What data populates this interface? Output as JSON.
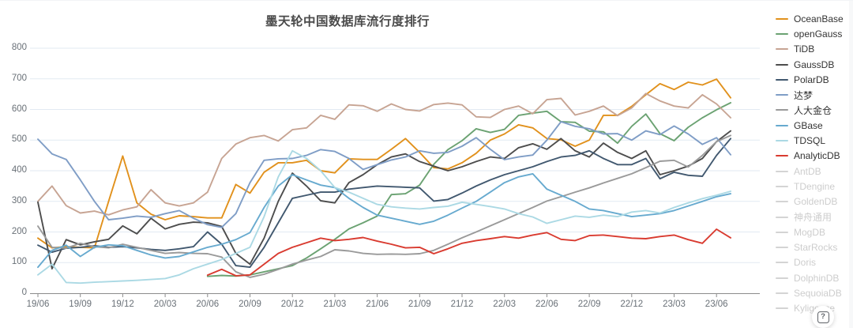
{
  "help_badge": {
    "label": "?"
  },
  "chart_data": {
    "type": "line",
    "title": "墨天轮中国数据库流行度排行",
    "xlabel": "",
    "ylabel": "",
    "ylim": [
      0,
      800
    ],
    "y_ticks": [
      0,
      100,
      200,
      300,
      400,
      500,
      600,
      700,
      800
    ],
    "grid": true,
    "legend_position": "right",
    "x_months_start": "19/06",
    "x_tick_labels": [
      "19/06",
      "19/09",
      "19/12",
      "20/03",
      "20/06",
      "20/09",
      "20/12",
      "21/03",
      "21/06",
      "21/09",
      "21/12",
      "22/03",
      "22/06",
      "22/09",
      "22/12",
      "23/03",
      "23/06"
    ],
    "x_tick_month_indexes": [
      0,
      3,
      6,
      9,
      12,
      15,
      18,
      21,
      24,
      27,
      30,
      33,
      36,
      39,
      42,
      45,
      48
    ],
    "colors": {
      "grid": "#e2eaf2",
      "axis": "#8c8c8c",
      "tick_text": "#697077",
      "title_text": "#4a4a4a",
      "inactive_legend": "#d4d4d4"
    },
    "series": [
      {
        "name": "OceanBase",
        "color": "#e1911c",
        "active": true,
        "values": [
          180,
          148,
          152,
          150,
          148,
          300,
          448,
          295,
          258,
          240,
          253,
          250,
          246,
          246,
          355,
          327,
          395,
          426,
          426,
          434,
          400,
          393,
          439,
          437,
          437,
          470,
          505,
          460,
          410,
          406,
          426,
          457,
          500,
          520,
          550,
          540,
          505,
          501,
          480,
          500,
          581,
          581,
          610,
          648,
          684,
          665,
          689,
          680,
          699,
          638
        ]
      },
      {
        "name": "openGauss",
        "color": "#6ba272",
        "active": true,
        "values": [
          null,
          null,
          null,
          null,
          null,
          null,
          null,
          null,
          null,
          null,
          null,
          null,
          55,
          58,
          56,
          60,
          70,
          80,
          90,
          115,
          145,
          176,
          210,
          230,
          252,
          322,
          325,
          353,
          421,
          469,
          498,
          537,
          525,
          535,
          581,
          588,
          594,
          560,
          558,
          529,
          527,
          490,
          545,
          585,
          521,
          498,
          542,
          573,
          599,
          622
        ]
      },
      {
        "name": "TiDB",
        "color": "#c7a493",
        "active": true,
        "values": [
          300,
          350,
          286,
          262,
          268,
          256,
          272,
          282,
          338,
          295,
          285,
          295,
          330,
          440,
          487,
          508,
          515,
          497,
          534,
          540,
          581,
          568,
          615,
          612,
          594,
          618,
          600,
          595,
          616,
          621,
          615,
          576,
          574,
          600,
          611,
          586,
          632,
          636,
          582,
          594,
          611,
          580,
          605,
          652,
          628,
          611,
          605,
          648,
          618,
          573
        ]
      },
      {
        "name": "GaussDB",
        "color": "#4d4d4d",
        "active": true,
        "values": [
          297,
          80,
          175,
          158,
          168,
          176,
          220,
          194,
          245,
          210,
          225,
          232,
          230,
          218,
          130,
          95,
          180,
          300,
          392,
          350,
          302,
          295,
          361,
          387,
          420,
          445,
          455,
          430,
          415,
          400,
          413,
          430,
          445,
          440,
          475,
          488,
          470,
          505,
          465,
          445,
          490,
          460,
          440,
          465,
          387,
          400,
          415,
          440,
          495,
          530
        ]
      },
      {
        "name": "PolarDB",
        "color": "#41586f",
        "active": true,
        "values": [
          157,
          134,
          147,
          150,
          155,
          150,
          152,
          148,
          143,
          140,
          145,
          152,
          200,
          160,
          90,
          85,
          150,
          230,
          310,
          320,
          330,
          330,
          340,
          345,
          350,
          348,
          346,
          344,
          301,
          306,
          327,
          350,
          370,
          387,
          400,
          413,
          430,
          445,
          450,
          465,
          440,
          420,
          420,
          440,
          374,
          395,
          385,
          382,
          450,
          505
        ]
      },
      {
        "name": "达梦",
        "color": "#7f9dc6",
        "active": true,
        "values": [
          503,
          455,
          437,
          370,
          300,
          240,
          245,
          252,
          248,
          260,
          270,
          245,
          224,
          215,
          260,
          361,
          434,
          439,
          440,
          450,
          469,
          463,
          440,
          404,
          420,
          435,
          445,
          465,
          457,
          460,
          480,
          508,
          470,
          436,
          445,
          451,
          500,
          560,
          545,
          537,
          520,
          521,
          500,
          530,
          518,
          546,
          520,
          486,
          508,
          452
        ]
      },
      {
        "name": "人大金仓",
        "color": "#9a9a9a",
        "active": true,
        "values": [
          219,
          150,
          147,
          163,
          152,
          148,
          160,
          150,
          140,
          130,
          133,
          130,
          129,
          118,
          70,
          52,
          62,
          78,
          95,
          108,
          120,
          142,
          138,
          130,
          127,
          128,
          127,
          129,
          140,
          160,
          181,
          200,
          220,
          240,
          260,
          280,
          301,
          315,
          330,
          344,
          360,
          375,
          390,
          410,
          431,
          434,
          412,
          450,
          495,
          515
        ]
      },
      {
        "name": "GBase",
        "color": "#67aacf",
        "active": true,
        "values": [
          85,
          140,
          157,
          120,
          150,
          158,
          155,
          140,
          125,
          115,
          120,
          135,
          150,
          160,
          175,
          198,
          280,
          350,
          387,
          370,
          353,
          345,
          310,
          280,
          255,
          245,
          235,
          225,
          235,
          255,
          278,
          300,
          330,
          361,
          380,
          390,
          340,
          320,
          300,
          275,
          270,
          260,
          250,
          255,
          260,
          270,
          285,
          300,
          315,
          325
        ]
      },
      {
        "name": "TDSQL",
        "color": "#abd9e4",
        "active": true,
        "values": [
          60,
          95,
          35,
          33,
          36,
          38,
          40,
          42,
          45,
          48,
          60,
          80,
          95,
          110,
          130,
          150,
          250,
          380,
          465,
          440,
          400,
          345,
          330,
          310,
          290,
          282,
          278,
          275,
          280,
          284,
          297,
          290,
          283,
          275,
          260,
          249,
          228,
          240,
          252,
          248,
          255,
          250,
          265,
          270,
          262,
          280,
          295,
          309,
          320,
          333
        ]
      },
      {
        "name": "AnalyticDB",
        "color": "#d93b30",
        "active": true,
        "values": [
          null,
          null,
          null,
          null,
          null,
          null,
          null,
          null,
          null,
          null,
          null,
          null,
          59,
          78,
          57,
          60,
          95,
          130,
          150,
          165,
          180,
          172,
          176,
          182,
          170,
          160,
          148,
          150,
          129,
          145,
          163,
          172,
          178,
          185,
          180,
          190,
          198,
          176,
          172,
          188,
          190,
          185,
          180,
          178,
          185,
          190,
          175,
          163,
          209,
          181
        ]
      },
      {
        "name": "AntDB",
        "color": "#d4d4d4",
        "active": false,
        "values": null
      },
      {
        "name": "TDengine",
        "color": "#d4d4d4",
        "active": false,
        "values": null
      },
      {
        "name": "GoldenDB",
        "color": "#d4d4d4",
        "active": false,
        "values": null
      },
      {
        "name": "神舟通用",
        "color": "#d4d4d4",
        "active": false,
        "values": null
      },
      {
        "name": "MogDB",
        "color": "#d4d4d4",
        "active": false,
        "values": null
      },
      {
        "name": "StarRocks",
        "color": "#d4d4d4",
        "active": false,
        "values": null
      },
      {
        "name": "Doris",
        "color": "#d4d4d4",
        "active": false,
        "values": null
      },
      {
        "name": "DolphinDB",
        "color": "#d4d4d4",
        "active": false,
        "values": null
      },
      {
        "name": "SequoiaDB",
        "color": "#d4d4d4",
        "active": false,
        "values": null
      },
      {
        "name": "Kyligence",
        "color": "#d4d4d4",
        "active": false,
        "values": null
      }
    ]
  }
}
